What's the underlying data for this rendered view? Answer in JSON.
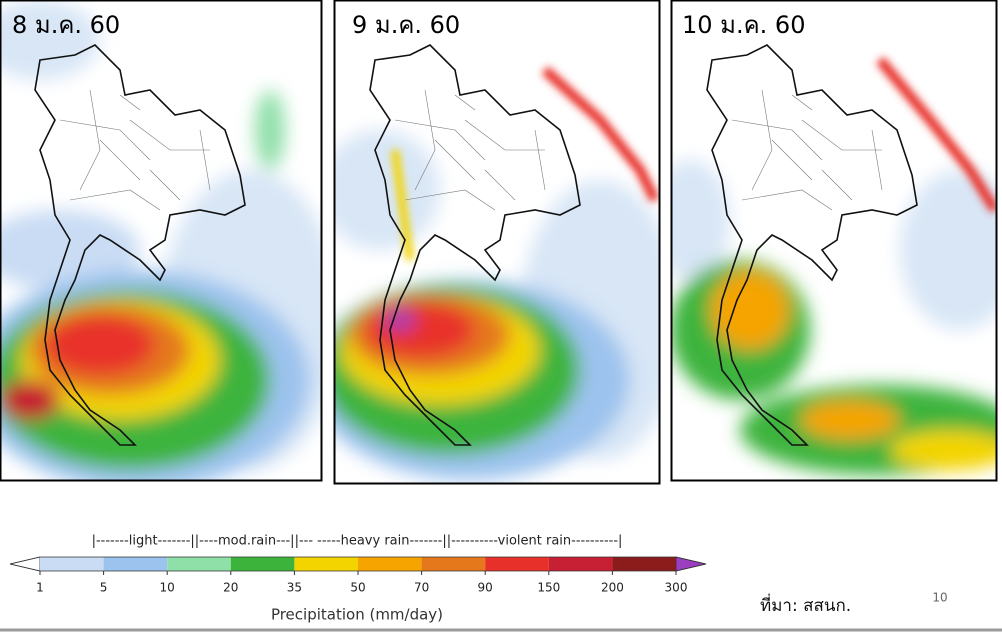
{
  "panels": [
    {
      "title": "8 ม.ค. 60"
    },
    {
      "title": "9 ม.ค. 60"
    },
    {
      "title": "10 ม.ค. 60"
    }
  ],
  "colorbar": {
    "header": "|-------light-------||----mod.rain---||--- -----heavy rain-------||----------violent rain----------|",
    "ticks": [
      1,
      5,
      10,
      20,
      35,
      50,
      70,
      90,
      150,
      200,
      300
    ],
    "colors": [
      "#c9dcf4",
      "#9cc3ee",
      "#8fdfa9",
      "#3cb43c",
      "#f3d400",
      "#f5a400",
      "#e4781a",
      "#e8302a",
      "#c71f33",
      "#8c1c1c"
    ],
    "under_color": "#ffffff",
    "over_color": "#9b3fc0",
    "label": "Precipitation (mm/day)"
  },
  "source": "ที่มา: สสนก.",
  "page_number": "10"
}
